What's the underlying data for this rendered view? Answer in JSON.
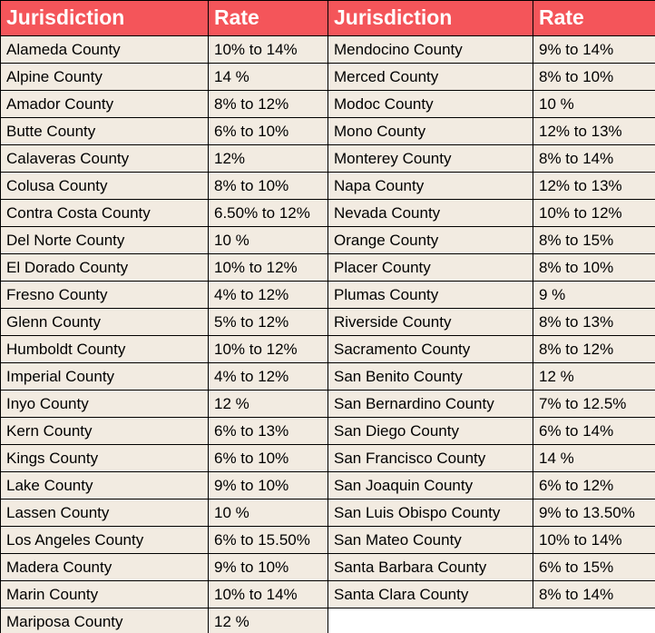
{
  "styles": {
    "header_bg": "#F4555A",
    "header_text": "#FFFFFF",
    "row_bg": "#F2EBE1",
    "border": "#000000",
    "empty_bg": "#FFFFFF"
  },
  "chart_data": {
    "type": "table",
    "columns": [
      "Jurisdiction",
      "Rate",
      "Jurisdiction",
      "Rate"
    ],
    "rows": [
      [
        "Alameda County",
        "10% to 14%",
        "Mendocino County",
        "9% to 14%"
      ],
      [
        "Alpine County",
        "14 %",
        "Merced County",
        "8% to 10%"
      ],
      [
        "Amador County",
        "8% to 12%",
        "Modoc County",
        "10 %"
      ],
      [
        "Butte County",
        "6% to 10%",
        "Mono County",
        "12% to 13%"
      ],
      [
        "Calaveras County",
        "12%",
        "Monterey County",
        "8% to 14%"
      ],
      [
        "Colusa County",
        "8% to 10%",
        "Napa County",
        "12% to 13%"
      ],
      [
        "Contra Costa County",
        "6.50% to 12%",
        "Nevada County",
        "10% to 12%"
      ],
      [
        "Del Norte County",
        "10 %",
        "Orange County",
        "8% to 15%"
      ],
      [
        "El Dorado County",
        "10% to 12%",
        "Placer County",
        "8% to 10%"
      ],
      [
        "Fresno County",
        "4% to 12%",
        "Plumas County",
        "9 %"
      ],
      [
        "Glenn County",
        "5% to 12%",
        "Riverside County",
        "8% to 13%"
      ],
      [
        "Humboldt County",
        "10% to 12%",
        "Sacramento County",
        "8% to 12%"
      ],
      [
        "Imperial County",
        "4% to 12%",
        "San Benito County",
        "12 %"
      ],
      [
        "Inyo County",
        "12 %",
        "San Bernardino County",
        "7% to 12.5%"
      ],
      [
        "Kern County",
        "6% to 13%",
        "San Diego County",
        "6% to 14%"
      ],
      [
        "Kings County",
        "6% to 10%",
        "San Francisco County",
        "14 %"
      ],
      [
        "Lake County",
        "9% to 10%",
        "San Joaquin County",
        "6% to 12%"
      ],
      [
        "Lassen County",
        "10 %",
        "San Luis Obispo County",
        "9% to 13.50%"
      ],
      [
        "Los Angeles County",
        "6% to 15.50%",
        "San Mateo County",
        "10% to 14%"
      ],
      [
        "Madera County",
        "9% to 10%",
        "Santa Barbara County",
        "6% to 15%"
      ],
      [
        "Marin County",
        "10% to 14%",
        "Santa Clara County",
        "8% to 14%"
      ],
      [
        "Mariposa County",
        "12 %",
        null,
        null
      ]
    ]
  }
}
